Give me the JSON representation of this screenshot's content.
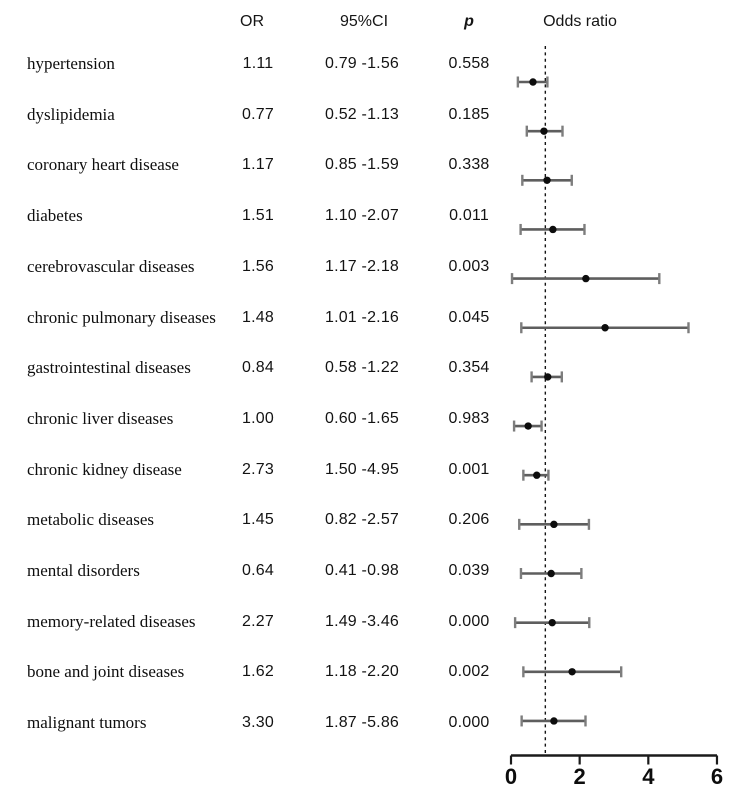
{
  "figure": {
    "columns": {
      "or": "OR",
      "ci": "95%CI",
      "p": "p",
      "plot_title": "Odds ratio"
    }
  },
  "chart_data": {
    "type": "forest",
    "title": "Odds ratio",
    "xlabel": "",
    "xlim": [
      0,
      6
    ],
    "x_ticks": [
      0,
      2,
      4,
      6
    ],
    "x_tick_labels": [
      "0",
      "2",
      "4",
      "6"
    ],
    "reference_x": 1,
    "grid": false,
    "legend": "none",
    "colors": {
      "marker": "#0d0d0d",
      "ci_line": "#5e5e5e",
      "ci_cap": "#7d7d7d",
      "axis": "#1a1a1a",
      "reference_line": "#141414",
      "text": "#111111"
    },
    "rows": [
      {
        "label": "hypertension",
        "or": "1.11",
        "ci": "0.79 -1.56",
        "ci_low": 0.79,
        "ci_high": 1.56,
        "p": "0.558",
        "plot": {
          "low": 0.2,
          "center": 0.64,
          "high": 1.06
        }
      },
      {
        "label": "dyslipidemia",
        "or": "0.77",
        "ci": "0.52 -1.13",
        "ci_low": 0.52,
        "ci_high": 1.13,
        "p": "0.185",
        "plot": {
          "low": 0.46,
          "center": 0.96,
          "high": 1.5
        }
      },
      {
        "label": "coronary heart disease",
        "or": "1.17",
        "ci": "0.85 -1.59",
        "ci_low": 0.85,
        "ci_high": 1.59,
        "p": "0.338",
        "plot": {
          "low": 0.33,
          "center": 1.05,
          "high": 1.77
        }
      },
      {
        "label": "diabetes",
        "or": "1.51",
        "ci": "1.10 -2.07",
        "ci_low": 1.1,
        "ci_high": 2.07,
        "p": "0.011",
        "plot": {
          "low": 0.28,
          "center": 1.22,
          "high": 2.14
        }
      },
      {
        "label": "cerebrovascular diseases",
        "or": "1.56",
        "ci": "1.17 -2.18",
        "ci_low": 1.17,
        "ci_high": 2.18,
        "p": "0.003",
        "plot": {
          "low": 0.03,
          "center": 2.18,
          "high": 4.32
        }
      },
      {
        "label": "chronic pulmonary diseases",
        "or": "1.48",
        "ci": "1.01 -2.16",
        "ci_low": 1.01,
        "ci_high": 2.16,
        "p": "0.045",
        "plot": {
          "low": 0.3,
          "center": 2.74,
          "high": 5.17
        }
      },
      {
        "label": "gastrointestinal diseases",
        "or": "0.84",
        "ci": "0.58 -1.22",
        "ci_low": 0.58,
        "ci_high": 1.22,
        "p": "0.354",
        "plot": {
          "low": 0.6,
          "center": 1.07,
          "high": 1.48
        }
      },
      {
        "label": "chronic liver diseases",
        "or": "1.00",
        "ci": "0.60 -1.65",
        "ci_low": 0.6,
        "ci_high": 1.65,
        "p": "0.983",
        "plot": {
          "low": 0.09,
          "center": 0.5,
          "high": 0.89
        }
      },
      {
        "label": "chronic kidney disease",
        "or": "2.73",
        "ci": "1.50 -4.95",
        "ci_low": 1.5,
        "ci_high": 4.95,
        "p": "0.001",
        "plot": {
          "low": 0.36,
          "center": 0.75,
          "high": 1.09
        }
      },
      {
        "label": "metabolic diseases",
        "or": "1.45",
        "ci": "0.82 -2.57",
        "ci_low": 0.82,
        "ci_high": 2.57,
        "p": "0.206",
        "plot": {
          "low": 0.24,
          "center": 1.25,
          "high": 2.27
        }
      },
      {
        "label": "mental disorders",
        "or": "0.64",
        "ci": "0.41 -0.98",
        "ci_low": 0.41,
        "ci_high": 0.98,
        "p": "0.039",
        "plot": {
          "low": 0.29,
          "center": 1.17,
          "high": 2.05
        }
      },
      {
        "label": "memory-related diseases",
        "or": "2.27",
        "ci": "1.49 -3.46",
        "ci_low": 1.49,
        "ci_high": 3.46,
        "p": "0.000",
        "plot": {
          "low": 0.12,
          "center": 1.2,
          "high": 2.28
        }
      },
      {
        "label": "bone and joint diseases",
        "or": "1.62",
        "ci": "1.18 -2.20",
        "ci_low": 1.18,
        "ci_high": 2.2,
        "p": "0.002",
        "plot": {
          "low": 0.36,
          "center": 1.78,
          "high": 3.21
        }
      },
      {
        "label": "malignant tumors",
        "or": "3.30",
        "ci": "1.87 -5.86",
        "ci_low": 1.87,
        "ci_high": 5.86,
        "p": "0.000",
        "plot": {
          "low": 0.31,
          "center": 1.25,
          "high": 2.17
        }
      }
    ]
  }
}
